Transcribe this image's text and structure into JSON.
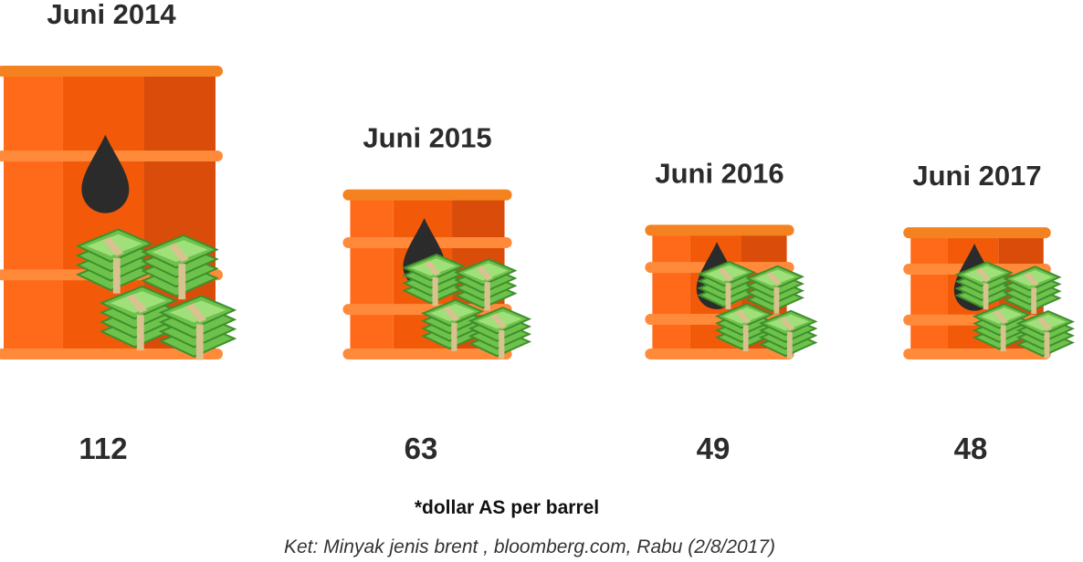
{
  "chart_data": {
    "type": "bar",
    "categories": [
      "Juni 2014",
      "Juni 2015",
      "Juni 2016",
      "Juni 2017"
    ],
    "values": [
      112,
      63,
      49,
      48
    ],
    "value_labels": [
      "112",
      "63",
      "49",
      "48"
    ],
    "mark_style": "oil barrel with oil-drop icon and stacks of banknotes",
    "grid": false
  },
  "notes": {
    "unit": "*dollar AS per barrel",
    "source": "Ket: Minyak jenis brent , bloomberg.com, Rabu (2/8/2017)"
  },
  "colors": {
    "barrel_left": "#ff6a1a",
    "barrel_mid": "#f25a0a",
    "barrel_right": "#d94c0a",
    "barrel_rim": "#ff8a3a",
    "barrel_rim_top": "#f58220",
    "oil_drop": "#2b2b2b",
    "money_face": "#6dc24b",
    "money_dark": "#3f8f2c",
    "money_light": "#9fe07a",
    "money_band": "#d8c28f",
    "text": "#2b2b2b"
  }
}
